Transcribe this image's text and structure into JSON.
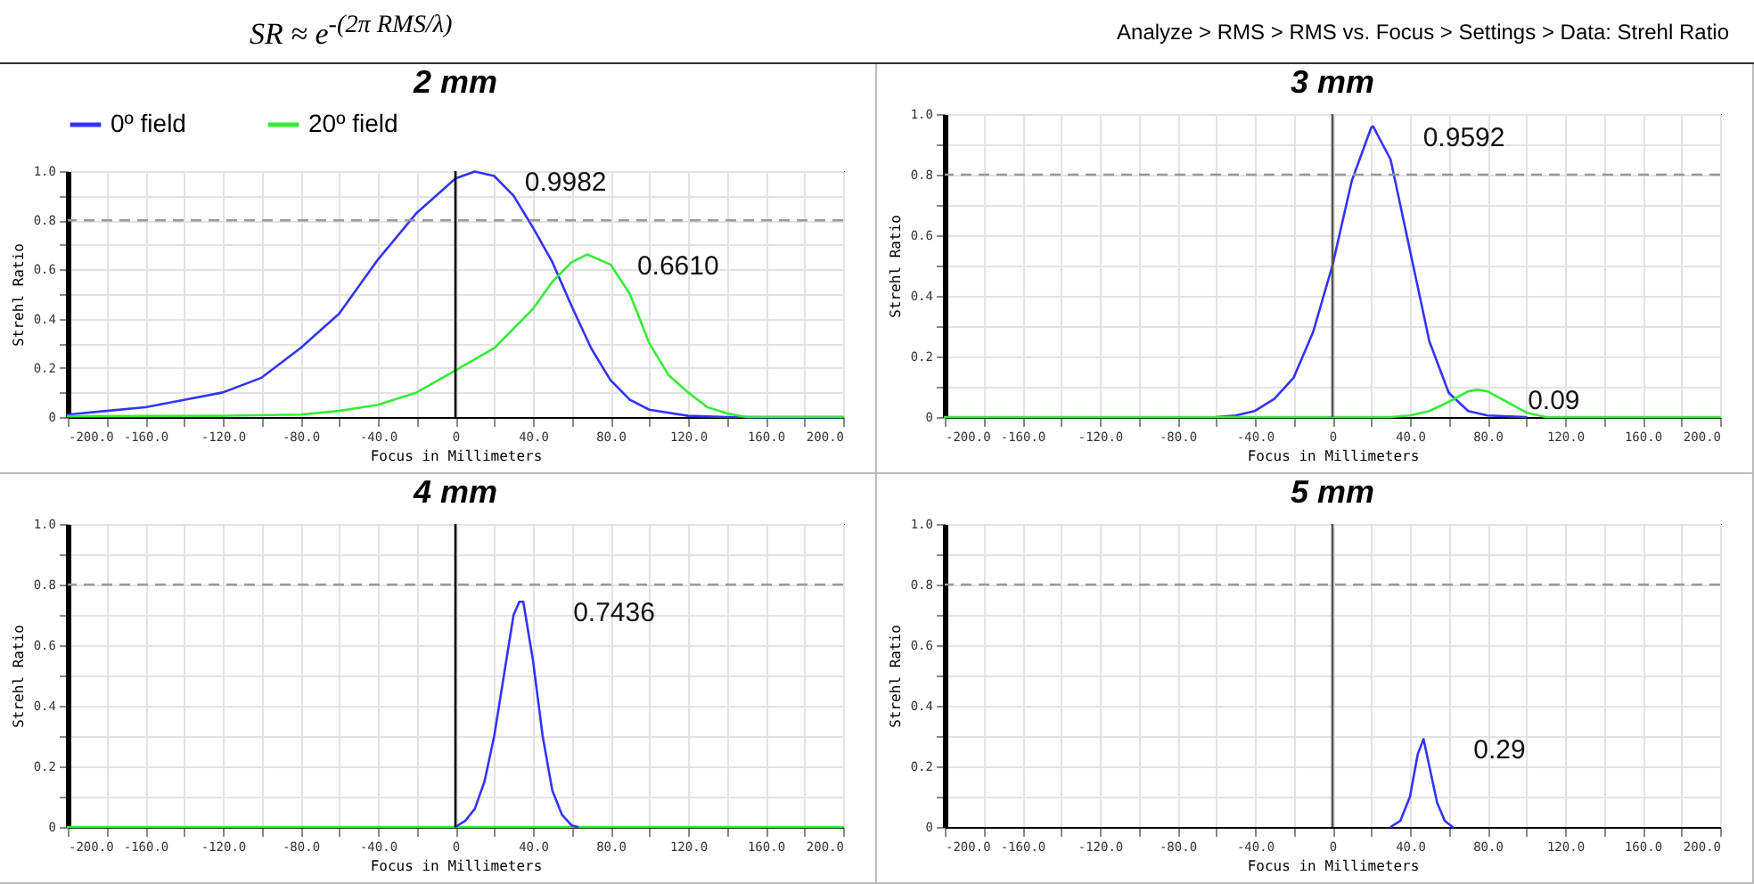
{
  "chart_data": [
    {
      "type": "line",
      "title": "2 mm",
      "xlabel": "Focus in Millimeters",
      "ylabel": "Strehl Ratio",
      "xlim": [
        -200,
        200
      ],
      "ylim": [
        0,
        1
      ],
      "xticks": [
        {
          "value": -200,
          "label": "-200.0"
        },
        {
          "value": -180,
          "label": null
        },
        {
          "value": -160,
          "label": "-160.0"
        },
        {
          "value": -140,
          "label": null
        },
        {
          "value": -120,
          "label": "-120.0"
        },
        {
          "value": -100,
          "label": null
        },
        {
          "value": -80,
          "label": "-80.0"
        },
        {
          "value": -60,
          "label": null
        },
        {
          "value": -40,
          "label": "-40.0"
        },
        {
          "value": -20,
          "label": null
        },
        {
          "value": 0,
          "label": "0"
        },
        {
          "value": 20,
          "label": null
        },
        {
          "value": 40,
          "label": "40.0"
        },
        {
          "value": 60,
          "label": null
        },
        {
          "value": 80,
          "label": "80.0"
        },
        {
          "value": 100,
          "label": null
        },
        {
          "value": 120,
          "label": "120.0"
        },
        {
          "value": 140,
          "label": null
        },
        {
          "value": 160,
          "label": "160.0"
        },
        {
          "value": 180,
          "label": null
        },
        {
          "value": 200,
          "label": "200.0"
        }
      ],
      "yticks": [
        0,
        {
          "value": 0.1,
          "label": null
        },
        0.2,
        {
          "value": 0.3,
          "label": null
        },
        0.4,
        {
          "value": 0.5,
          "label": null
        },
        0.6,
        {
          "value": 0.7,
          "label": null
        },
        0.8,
        {
          "value": 0.9,
          "label": null
        },
        {
          "value": 1,
          "label": "1.0"
        }
      ],
      "grid": true,
      "legend": "top",
      "line_style": "solid",
      "series": [
        {
          "name": "0º field",
          "color": "#3333ff",
          "x": [
            -200,
            -180,
            -160,
            -140,
            -120,
            -100,
            -80,
            -60,
            -40,
            -20,
            0,
            10,
            20,
            30,
            40,
            50,
            60,
            70,
            80,
            90,
            100,
            120,
            140,
            200
          ],
          "values": [
            0.01,
            0.025,
            0.04,
            0.07,
            0.1,
            0.16,
            0.28,
            0.42,
            0.64,
            0.83,
            0.97,
            0.9982,
            0.98,
            0.9,
            0.77,
            0.63,
            0.45,
            0.28,
            0.15,
            0.07,
            0.03,
            0.005,
            0,
            0
          ]
        },
        {
          "name": "20º field",
          "color": "#33ee33",
          "x": [
            -200,
            -120,
            -80,
            -60,
            -40,
            -20,
            0,
            20,
            40,
            50,
            60,
            68,
            80,
            90,
            100,
            110,
            120,
            130,
            140,
            150,
            200
          ],
          "values": [
            0.003,
            0.005,
            0.01,
            0.025,
            0.05,
            0.1,
            0.19,
            0.28,
            0.44,
            0.55,
            0.63,
            0.661,
            0.62,
            0.5,
            0.3,
            0.17,
            0.1,
            0.04,
            0.015,
            0,
            0
          ]
        }
      ],
      "ref_lines": [
        {
          "axis": "x",
          "value": 0,
          "color": "#000000",
          "line_style": "solid"
        },
        {
          "axis": "y",
          "value": 0.8,
          "color": "#999999",
          "line_style": "dashed"
        }
      ],
      "annotations": [
        "SR ≈ e$^{-(2π RMS/λ)}$",
        "Analyze > RMS > RMS vs. Focus > Settings > Data: Strehl Ratio",
        {
          "text": "0.9982",
          "x": 10,
          "y": 0.9982
        },
        {
          "text": "0.6610",
          "x": 68,
          "y": 0.661
        }
      ]
    },
    {
      "type": "line",
      "title": "3 mm",
      "xlabel": "Focus in Millimeters",
      "ylabel": "Strehl Ratio",
      "xlim": [
        -200,
        200
      ],
      "ylim": [
        0,
        1
      ],
      "xticks": [
        {
          "value": -200,
          "label": "-200.0"
        },
        {
          "value": -180,
          "label": null
        },
        {
          "value": -160,
          "label": "-160.0"
        },
        {
          "value": -140,
          "label": null
        },
        {
          "value": -120,
          "label": "-120.0"
        },
        {
          "value": -100,
          "label": null
        },
        {
          "value": -80,
          "label": "-80.0"
        },
        {
          "value": -60,
          "label": null
        },
        {
          "value": -40,
          "label": "-40.0"
        },
        {
          "value": -20,
          "label": null
        },
        {
          "value": 0,
          "label": "0"
        },
        {
          "value": 20,
          "label": null
        },
        {
          "value": 40,
          "label": "40.0"
        },
        {
          "value": 60,
          "label": null
        },
        {
          "value": 80,
          "label": "80.0"
        },
        {
          "value": 100,
          "label": null
        },
        {
          "value": 120,
          "label": "120.0"
        },
        {
          "value": 140,
          "label": null
        },
        {
          "value": 160,
          "label": "160.0"
        },
        {
          "value": 180,
          "label": null
        },
        {
          "value": 200,
          "label": "200.0"
        }
      ],
      "yticks": [
        0,
        {
          "value": 0.1,
          "label": null
        },
        0.2,
        {
          "value": 0.3,
          "label": null
        },
        0.4,
        {
          "value": 0.5,
          "label": null
        },
        0.6,
        {
          "value": 0.7,
          "label": null
        },
        0.8,
        {
          "value": 0.9,
          "label": null
        },
        {
          "value": 1,
          "label": "1.0"
        }
      ],
      "grid": true,
      "line_style": "solid",
      "series": [
        {
          "color": "#3333ff",
          "x": [
            -60,
            -50,
            -40,
            -30,
            -20,
            -10,
            0,
            10,
            20,
            21,
            30,
            40,
            50,
            60,
            70,
            80,
            100
          ],
          "values": [
            0,
            0.005,
            0.02,
            0.06,
            0.13,
            0.28,
            0.5,
            0.78,
            0.955,
            0.9592,
            0.85,
            0.55,
            0.25,
            0.08,
            0.02,
            0.005,
            0
          ]
        },
        {
          "color": "#33ee33",
          "x": [
            -200,
            30,
            40,
            50,
            60,
            70,
            75,
            80,
            90,
            100,
            110,
            200
          ],
          "values": [
            0,
            0,
            0.005,
            0.02,
            0.05,
            0.085,
            0.09,
            0.085,
            0.05,
            0.015,
            0,
            0
          ]
        }
      ],
      "ref_lines": [
        {
          "axis": "x",
          "value": 0,
          "color": "#555555",
          "line_style": "solid"
        },
        {
          "axis": "y",
          "value": 0.8,
          "color": "#999999",
          "line_style": "dashed"
        }
      ],
      "annotations": [
        {
          "text": "0.9592",
          "x": 21,
          "y": 0.9592
        },
        {
          "text": "0.09",
          "x": 75,
          "y": 0.09
        }
      ]
    },
    {
      "type": "line",
      "title": "4 mm",
      "xlabel": "Focus in Millimeters",
      "ylabel": "Strehl Ratio",
      "xlim": [
        -200,
        200
      ],
      "ylim": [
        0,
        1
      ],
      "xticks": [
        {
          "value": -200,
          "label": "-200.0"
        },
        {
          "value": -180,
          "label": null
        },
        {
          "value": -160,
          "label": "-160.0"
        },
        {
          "value": -140,
          "label": null
        },
        {
          "value": -120,
          "label": "-120.0"
        },
        {
          "value": -100,
          "label": null
        },
        {
          "value": -80,
          "label": "-80.0"
        },
        {
          "value": -60,
          "label": null
        },
        {
          "value": -40,
          "label": "-40.0"
        },
        {
          "value": -20,
          "label": null
        },
        {
          "value": 0,
          "label": "0"
        },
        {
          "value": 20,
          "label": null
        },
        {
          "value": 40,
          "label": "40.0"
        },
        {
          "value": 60,
          "label": null
        },
        {
          "value": 80,
          "label": "80.0"
        },
        {
          "value": 100,
          "label": null
        },
        {
          "value": 120,
          "label": "120.0"
        },
        {
          "value": 140,
          "label": null
        },
        {
          "value": 160,
          "label": "160.0"
        },
        {
          "value": 180,
          "label": null
        },
        {
          "value": 200,
          "label": "200.0"
        }
      ],
      "yticks": [
        0,
        {
          "value": 0.1,
          "label": null
        },
        0.2,
        {
          "value": 0.3,
          "label": null
        },
        0.4,
        {
          "value": 0.5,
          "label": null
        },
        0.6,
        {
          "value": 0.7,
          "label": null
        },
        0.8,
        {
          "value": 0.9,
          "label": null
        },
        {
          "value": 1,
          "label": "1.0"
        }
      ],
      "grid": true,
      "line_style": "solid",
      "series": [
        {
          "color": "#33ee33",
          "x": [
            -200,
            200
          ],
          "values": [
            0,
            0
          ]
        },
        {
          "color": "#3333ff",
          "x": [
            0,
            5,
            10,
            15,
            20,
            25,
            30,
            33,
            35,
            40,
            45,
            50,
            55,
            60,
            63
          ],
          "values": [
            0,
            0.02,
            0.06,
            0.15,
            0.3,
            0.5,
            0.7,
            0.7436,
            0.7436,
            0.55,
            0.3,
            0.12,
            0.04,
            0.005,
            0
          ]
        }
      ],
      "ref_lines": [
        {
          "axis": "x",
          "value": 0,
          "color": "#000000",
          "line_style": "solid"
        },
        {
          "axis": "y",
          "value": 0.8,
          "color": "#999999",
          "line_style": "dashed"
        }
      ],
      "annotations": [
        {
          "text": "0.7436",
          "x": 35,
          "y": 0.7436
        }
      ]
    },
    {
      "type": "line",
      "title": "5 mm",
      "xlabel": "Focus in Millimeters",
      "ylabel": "Strehl Ratio",
      "xlim": [
        -200,
        200
      ],
      "ylim": [
        0,
        1
      ],
      "xticks": [
        {
          "value": -200,
          "label": "-200.0"
        },
        {
          "value": -180,
          "label": null
        },
        {
          "value": -160,
          "label": "-160.0"
        },
        {
          "value": -140,
          "label": null
        },
        {
          "value": -120,
          "label": "-120.0"
        },
        {
          "value": -100,
          "label": null
        },
        {
          "value": -80,
          "label": "-80.0"
        },
        {
          "value": -60,
          "label": null
        },
        {
          "value": -40,
          "label": "-40.0"
        },
        {
          "value": -20,
          "label": null
        },
        {
          "value": 0,
          "label": "0"
        },
        {
          "value": 20,
          "label": null
        },
        {
          "value": 40,
          "label": "40.0"
        },
        {
          "value": 60,
          "label": null
        },
        {
          "value": 80,
          "label": "80.0"
        },
        {
          "value": 100,
          "label": null
        },
        {
          "value": 120,
          "label": "120.0"
        },
        {
          "value": 140,
          "label": null
        },
        {
          "value": 160,
          "label": "160.0"
        },
        {
          "value": 180,
          "label": null
        },
        {
          "value": 200,
          "label": "200.0"
        }
      ],
      "yticks": [
        0,
        {
          "value": 0.1,
          "label": null
        },
        0.2,
        {
          "value": 0.3,
          "label": null
        },
        0.4,
        {
          "value": 0.5,
          "label": null
        },
        0.6,
        {
          "value": 0.7,
          "label": null
        },
        0.8,
        {
          "value": 0.9,
          "label": null
        },
        {
          "value": 1,
          "label": "1.0"
        }
      ],
      "grid": true,
      "line_style": "solid",
      "series": [
        {
          "color": "#3333ff",
          "x": [
            30,
            35,
            40,
            44,
            47,
            50,
            54,
            58,
            62
          ],
          "values": [
            0,
            0.02,
            0.1,
            0.24,
            0.29,
            0.2,
            0.08,
            0.02,
            0
          ]
        }
      ],
      "ref_lines": [
        {
          "axis": "x",
          "value": 0,
          "color": "#555555",
          "line_style": "solid"
        },
        {
          "axis": "y",
          "value": 0.8,
          "color": "#999999",
          "line_style": "dashed"
        }
      ],
      "annotations": [
        {
          "text": "0.29",
          "x": 47,
          "y": 0.29
        }
      ]
    }
  ]
}
